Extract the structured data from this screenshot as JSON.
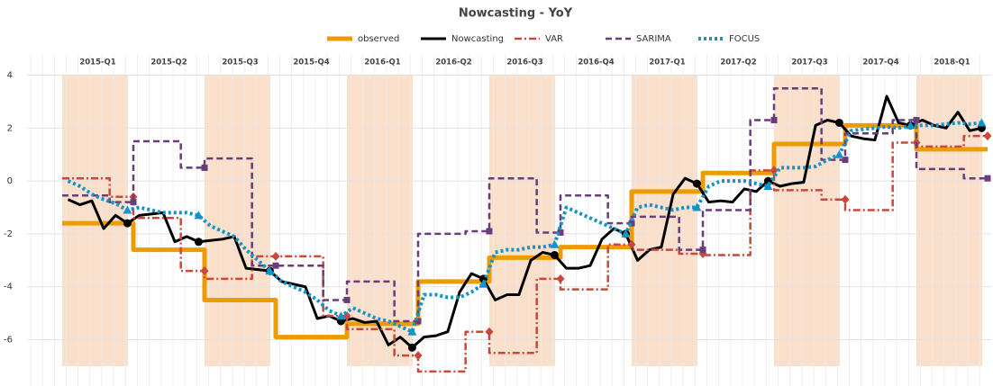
{
  "chart_data": {
    "type": "line",
    "title": "Nowcasting - YoY",
    "quarters": [
      "2015-Q1",
      "2015-Q2",
      "2015-Q3",
      "2015-Q4",
      "2016-Q1",
      "2016-Q2",
      "2016-Q3",
      "2016-Q4",
      "2017-Q1",
      "2017-Q2",
      "2017-Q3",
      "2017-Q4",
      "2018-Q1"
    ],
    "ylim": [
      -7.75,
      4.8
    ],
    "yticks": [
      -6,
      -4,
      -2,
      0,
      2,
      4
    ],
    "grid": true,
    "shade_ylim": [
      -7,
      4
    ],
    "shade_color": "#fadfcb",
    "legend": "top",
    "series": [
      {
        "name": "observed",
        "color": "#ee9b00",
        "style": "solid",
        "step": true,
        "values": [
          -1.6,
          -2.6,
          -4.5,
          -5.9,
          -5.4,
          -3.8,
          -2.9,
          -2.5,
          -0.4,
          0.3,
          1.4,
          2.1,
          1.2
        ]
      },
      {
        "name": "Nowcasting",
        "color": "#000000",
        "style": "solid",
        "marker": "circle",
        "values": [
          -0.7,
          -0.9,
          -0.75,
          -1.8,
          -1.3,
          -1.6,
          -1.3,
          -1.25,
          -1.2,
          -2.3,
          -2.1,
          -2.3,
          -2.25,
          -2.2,
          -2.1,
          -3.3,
          -3.35,
          -3.4,
          -3.8,
          -3.9,
          -4.0,
          -5.2,
          -5.1,
          -5.3,
          -5.2,
          -5.35,
          -5.3,
          -6.2,
          -5.9,
          -6.3,
          -5.9,
          -5.85,
          -5.7,
          -4.2,
          -3.5,
          -3.7,
          -4.5,
          -4.3,
          -4.3,
          -3.0,
          -2.7,
          -2.8,
          -3.3,
          -3.3,
          -3.2,
          -2.2,
          -1.8,
          -2.0,
          -3.0,
          -2.6,
          -2.5,
          -0.5,
          0.1,
          -0.1,
          -0.8,
          -0.75,
          -0.8,
          -0.3,
          -0.4,
          0.0,
          -0.2,
          -0.1,
          -0.05,
          2.1,
          2.3,
          2.2,
          1.7,
          1.6,
          1.55,
          3.2,
          2.2,
          2.1,
          2.3,
          2.1,
          2.0,
          2.6,
          1.9,
          2.0
        ]
      },
      {
        "name": "VAR",
        "color": "#c9483a",
        "style": "dashdot",
        "step": true,
        "marker": "diamond",
        "values": [
          0.1,
          0.1,
          0.1,
          0.1,
          -0.6,
          -0.6,
          -1.4,
          -1.4,
          -1.4,
          -1.4,
          -3.4,
          -3.4,
          -3.7,
          -3.7,
          -3.7,
          -3.7,
          -2.85,
          -2.85,
          -2.85,
          -2.85,
          -2.85,
          -2.85,
          -5.1,
          -5.1,
          -5.6,
          -5.6,
          -5.6,
          -5.6,
          -6.6,
          -6.6,
          -7.2,
          -7.2,
          -7.2,
          -7.2,
          -5.7,
          -5.7,
          -6.5,
          -6.5,
          -6.5,
          -6.5,
          -3.7,
          -3.7,
          -4.1,
          -4.1,
          -4.1,
          -4.1,
          -2.4,
          -2.4,
          -2.6,
          -2.6,
          -2.6,
          -2.6,
          -2.75,
          -2.75,
          -2.8,
          -2.8,
          -2.8,
          -2.8,
          0.4,
          0.4,
          -0.35,
          -0.35,
          -0.35,
          -0.35,
          -0.7,
          -0.7,
          -1.1,
          -1.1,
          -1.1,
          -1.1,
          1.45,
          1.45,
          1.3,
          1.3,
          1.3,
          1.3,
          1.7,
          1.7
        ]
      },
      {
        "name": "SARIMA",
        "color": "#6a3d7a",
        "style": "dashed",
        "step": true,
        "marker": "square",
        "values": [
          -0.55,
          -0.55,
          -0.55,
          -0.55,
          -0.8,
          -0.8,
          1.5,
          1.5,
          1.5,
          1.5,
          0.5,
          0.5,
          0.85,
          0.85,
          0.85,
          0.85,
          -3.2,
          -3.2,
          -3.2,
          -3.2,
          -3.2,
          -3.2,
          -4.5,
          -4.5,
          -3.8,
          -3.8,
          -3.8,
          -3.8,
          -5.3,
          -5.3,
          -2.0,
          -2.0,
          -2.0,
          -2.0,
          -1.9,
          -1.9,
          0.1,
          0.1,
          0.1,
          0.1,
          -1.95,
          -1.95,
          -0.55,
          -0.55,
          -0.55,
          -0.55,
          -1.6,
          -1.6,
          -1.35,
          -1.35,
          -1.35,
          -1.35,
          -2.6,
          -2.6,
          -1.1,
          -1.1,
          -1.1,
          -1.1,
          2.3,
          2.3,
          3.5,
          3.5,
          3.5,
          3.5,
          0.8,
          0.8,
          1.8,
          1.8,
          1.8,
          1.8,
          2.3,
          2.3,
          0.45,
          0.45,
          0.45,
          0.45,
          0.1,
          0.1
        ]
      },
      {
        "name": "FOCUS",
        "color": "#1394c8",
        "style": "dotted",
        "marker": "triangle",
        "values": [
          0.0,
          -0.2,
          -0.5,
          -0.7,
          -0.85,
          -1.1,
          -1.0,
          -1.1,
          -1.2,
          -1.2,
          -1.2,
          -1.3,
          -1.7,
          -1.9,
          -2.1,
          -2.6,
          -3.0,
          -3.4,
          -3.8,
          -4.0,
          -4.2,
          -4.5,
          -4.9,
          -5.1,
          -4.8,
          -5.0,
          -5.2,
          -5.3,
          -5.5,
          -5.7,
          -4.3,
          -4.3,
          -4.4,
          -4.4,
          -4.2,
          -3.9,
          -2.7,
          -2.6,
          -2.6,
          -2.5,
          -2.5,
          -2.4,
          -1.0,
          -1.2,
          -1.4,
          -1.6,
          -1.8,
          -2.0,
          -1.0,
          -0.9,
          -1.0,
          -1.1,
          -1.0,
          -1.0,
          -0.2,
          0.0,
          0.0,
          0.0,
          -0.1,
          -0.2,
          0.5,
          0.5,
          0.5,
          0.55,
          0.8,
          1.0,
          1.9,
          1.95,
          2.0,
          2.05,
          2.0,
          2.1,
          2.1,
          2.1,
          2.15,
          2.2,
          2.15,
          2.2
        ]
      }
    ]
  }
}
